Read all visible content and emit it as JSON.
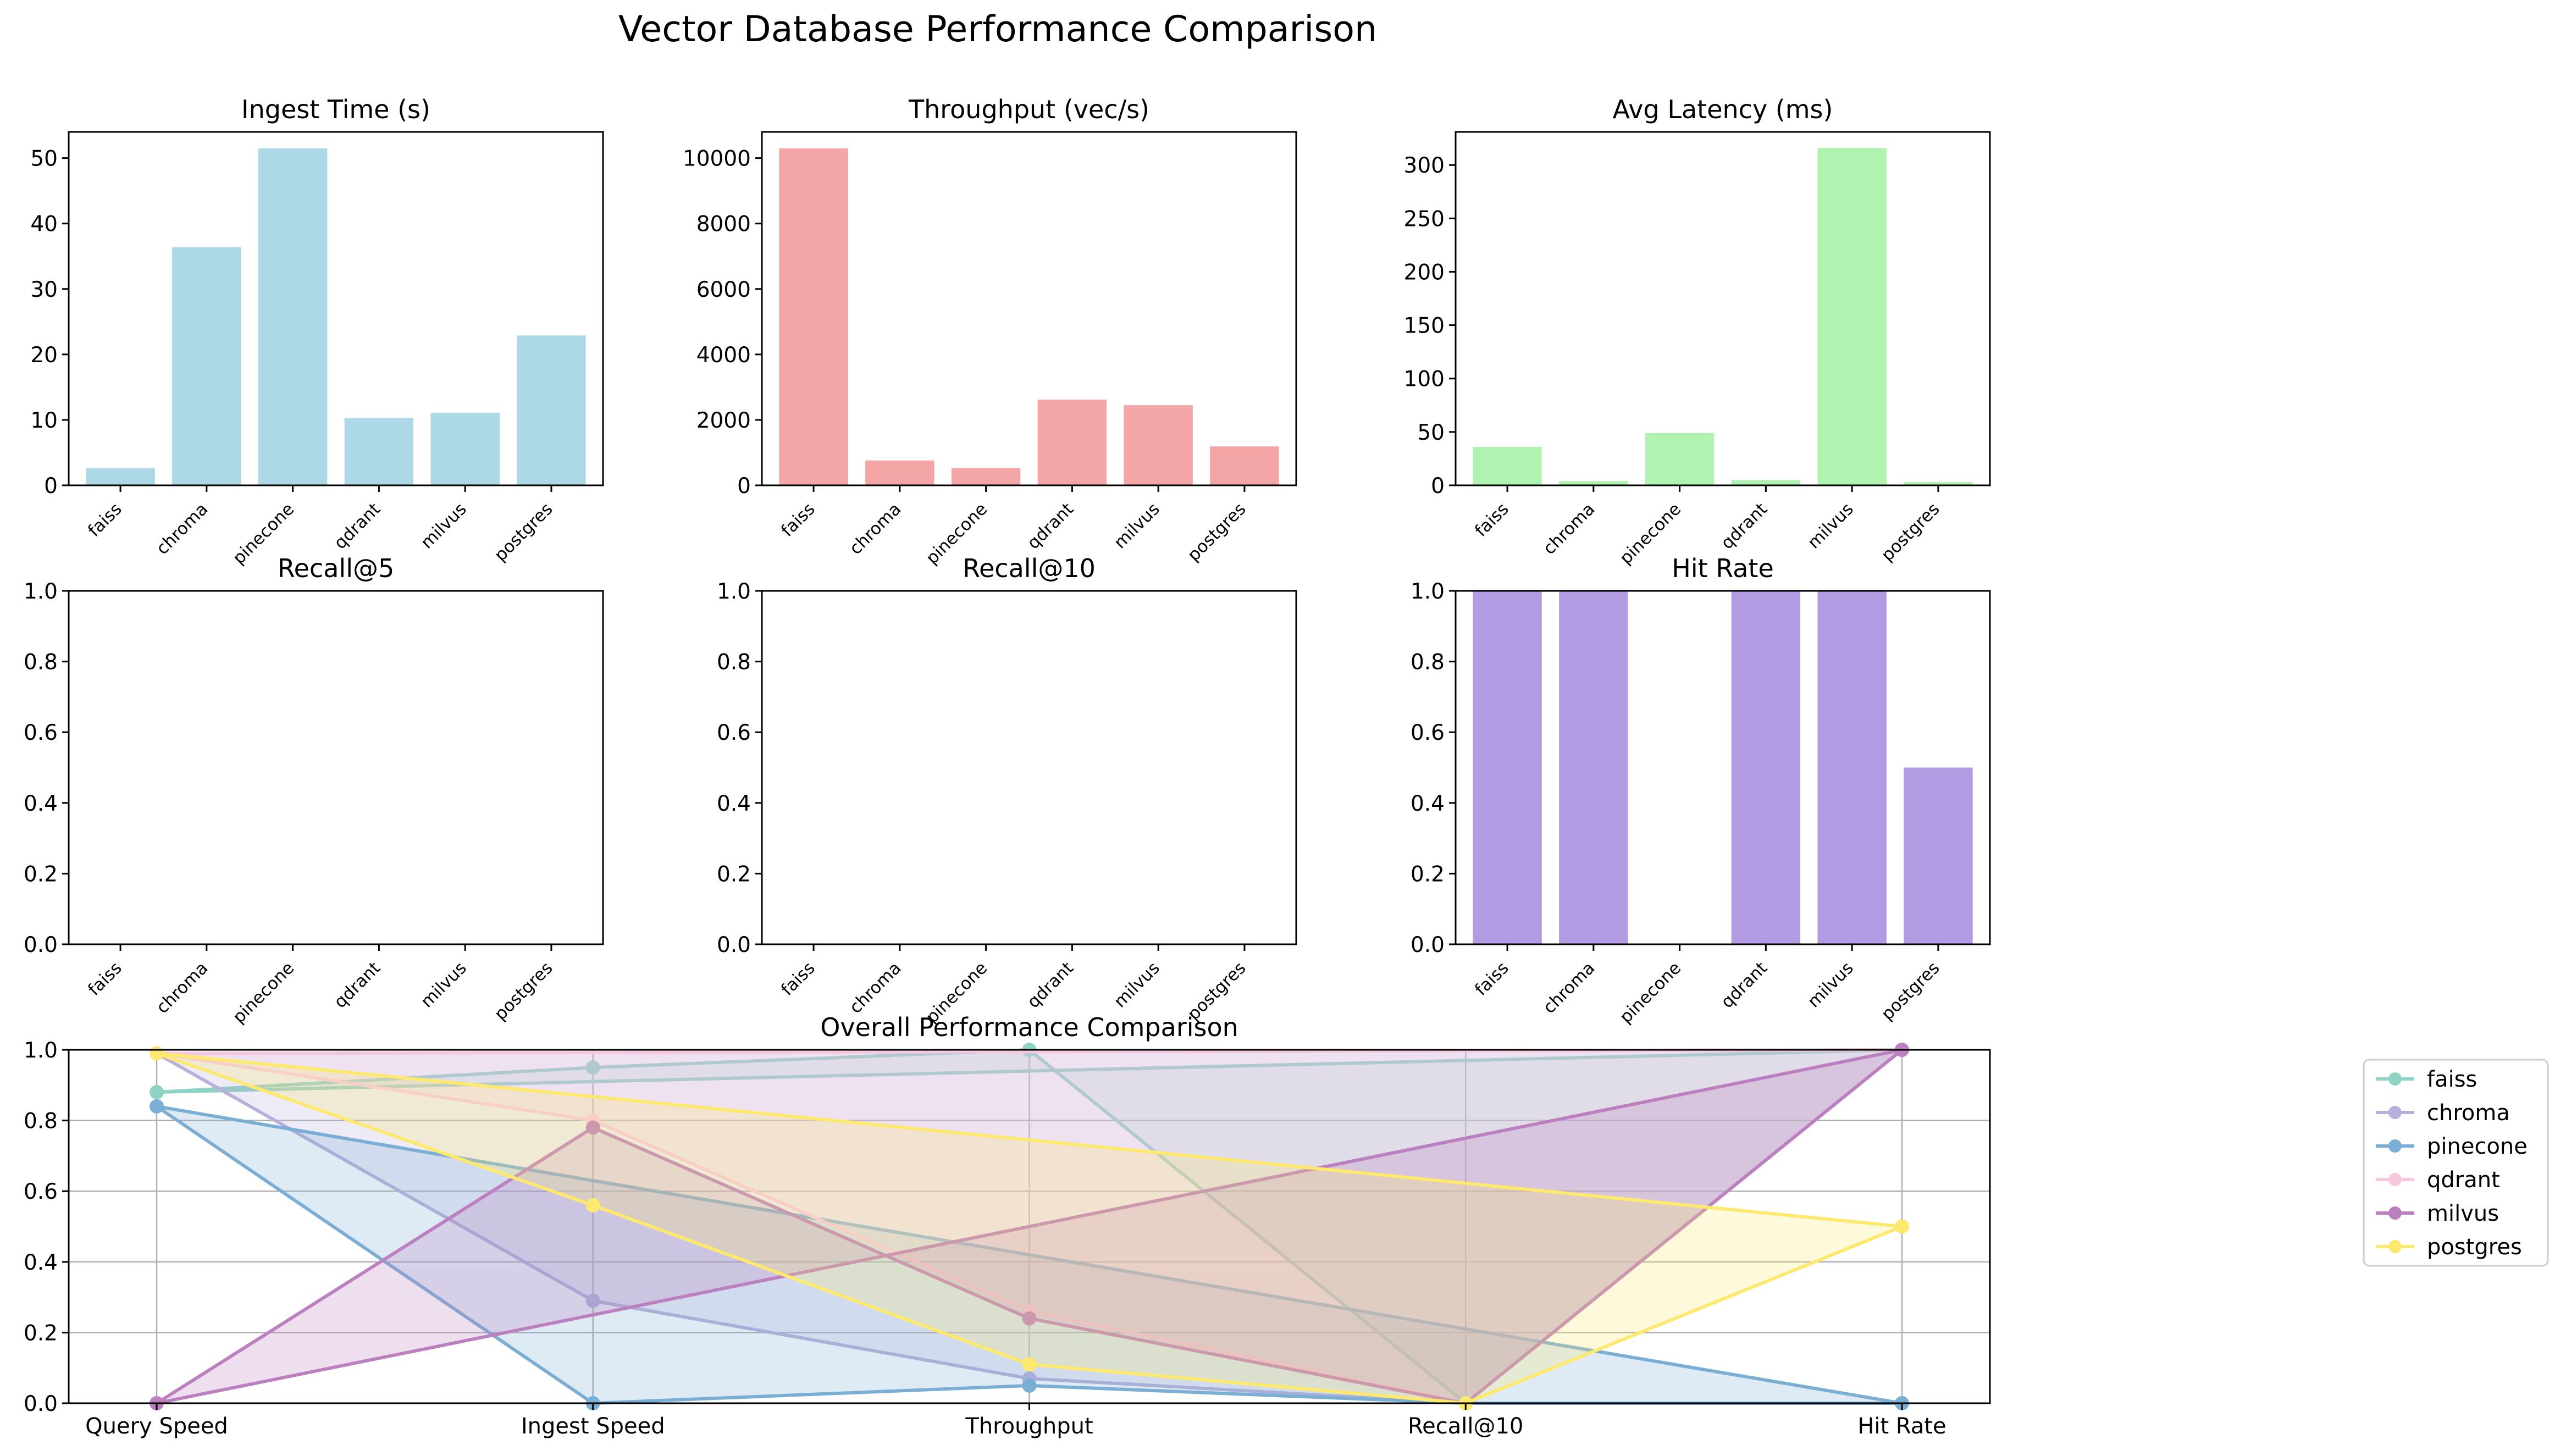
{
  "figure": {
    "title": "Vector Database Performance Comparison"
  },
  "colors": {
    "bars": [
      "#add8e6",
      "#f4a6a6",
      "#b0f2b0",
      "#add8e6",
      "#add8e6",
      "#b19be3"
    ],
    "series": [
      "#8fd3c6",
      "#b8b0da",
      "#7aaed4",
      "#f7c7e0",
      "#bc7fc0",
      "#fde96e"
    ],
    "grid": "#b0b0b0"
  },
  "chart_data": [
    {
      "type": "bar",
      "title": "Ingest Time (s)",
      "categories": [
        "faiss",
        "chroma",
        "pinecone",
        "qdrant",
        "milvus",
        "postgres"
      ],
      "values": [
        2.6,
        36.4,
        51.5,
        10.3,
        11.1,
        22.9
      ],
      "ylim": [
        0,
        54
      ],
      "yticks": [
        0,
        10,
        20,
        30,
        40,
        50
      ],
      "ytick_labels": [
        "0",
        "10",
        "20",
        "30",
        "40",
        "50"
      ]
    },
    {
      "type": "bar",
      "title": "Throughput (vec/s)",
      "categories": [
        "faiss",
        "chroma",
        "pinecone",
        "qdrant",
        "milvus",
        "postgres"
      ],
      "values": [
        10300,
        760,
        530,
        2620,
        2450,
        1190
      ],
      "ylim": [
        0,
        10800
      ],
      "yticks": [
        0,
        2000,
        4000,
        6000,
        8000,
        10000
      ],
      "ytick_labels": [
        "0",
        "2000",
        "4000",
        "6000",
        "8000",
        "10000"
      ]
    },
    {
      "type": "bar",
      "title": "Avg Latency (ms)",
      "categories": [
        "faiss",
        "chroma",
        "pinecone",
        "qdrant",
        "milvus",
        "postgres"
      ],
      "values": [
        36,
        4,
        49,
        5,
        316,
        3
      ],
      "ylim": [
        0,
        331
      ],
      "yticks": [
        0,
        50,
        100,
        150,
        200,
        250,
        300
      ],
      "ytick_labels": [
        "0",
        "50",
        "100",
        "150",
        "200",
        "250",
        "300"
      ]
    },
    {
      "type": "bar",
      "title": "Recall@5",
      "categories": [
        "faiss",
        "chroma",
        "pinecone",
        "qdrant",
        "milvus",
        "postgres"
      ],
      "values": [
        0,
        0,
        0,
        0,
        0,
        0
      ],
      "ylim": [
        0,
        1
      ],
      "yticks": [
        0,
        0.2,
        0.4,
        0.6,
        0.8,
        1.0
      ],
      "ytick_labels": [
        "0.0",
        "0.2",
        "0.4",
        "0.6",
        "0.8",
        "1.0"
      ]
    },
    {
      "type": "bar",
      "title": "Recall@10",
      "categories": [
        "faiss",
        "chroma",
        "pinecone",
        "qdrant",
        "milvus",
        "postgres"
      ],
      "values": [
        0,
        0,
        0,
        0,
        0,
        0
      ],
      "ylim": [
        0,
        1
      ],
      "yticks": [
        0,
        0.2,
        0.4,
        0.6,
        0.8,
        1.0
      ],
      "ytick_labels": [
        "0.0",
        "0.2",
        "0.4",
        "0.6",
        "0.8",
        "1.0"
      ]
    },
    {
      "type": "bar",
      "title": "Hit Rate",
      "categories": [
        "faiss",
        "chroma",
        "pinecone",
        "qdrant",
        "milvus",
        "postgres"
      ],
      "values": [
        1.0,
        1.0,
        0,
        1.0,
        1.0,
        0.5
      ],
      "ylim": [
        0,
        1
      ],
      "yticks": [
        0,
        0.2,
        0.4,
        0.6,
        0.8,
        1.0
      ],
      "ytick_labels": [
        "0.0",
        "0.2",
        "0.4",
        "0.6",
        "0.8",
        "1.0"
      ]
    },
    {
      "type": "line",
      "title": "Overall Performance Comparison",
      "categories": [
        "Query Speed",
        "Ingest Speed",
        "Throughput",
        "Recall@10",
        "Hit Rate"
      ],
      "ylim": [
        0,
        1
      ],
      "yticks": [
        0,
        0.2,
        0.4,
        0.6,
        0.8,
        1.0
      ],
      "ytick_labels": [
        "0.0",
        "0.2",
        "0.4",
        "0.6",
        "0.8",
        "1.0"
      ],
      "grid": true,
      "legend": "outside-right",
      "series": [
        {
          "name": "faiss",
          "values": [
            0.88,
            0.95,
            1.0,
            0.0,
            1.0
          ]
        },
        {
          "name": "chroma",
          "values": [
            0.99,
            0.29,
            0.07,
            0.0,
            1.0
          ]
        },
        {
          "name": "pinecone",
          "values": [
            0.84,
            0.0,
            0.05,
            0.0,
            0.0
          ]
        },
        {
          "name": "qdrant",
          "values": [
            0.99,
            0.8,
            0.26,
            0.0,
            1.0
          ]
        },
        {
          "name": "milvus",
          "values": [
            0.0,
            0.78,
            0.24,
            0.0,
            1.0
          ]
        },
        {
          "name": "postgres",
          "values": [
            0.99,
            0.56,
            0.11,
            0.0,
            0.5
          ]
        }
      ]
    }
  ]
}
